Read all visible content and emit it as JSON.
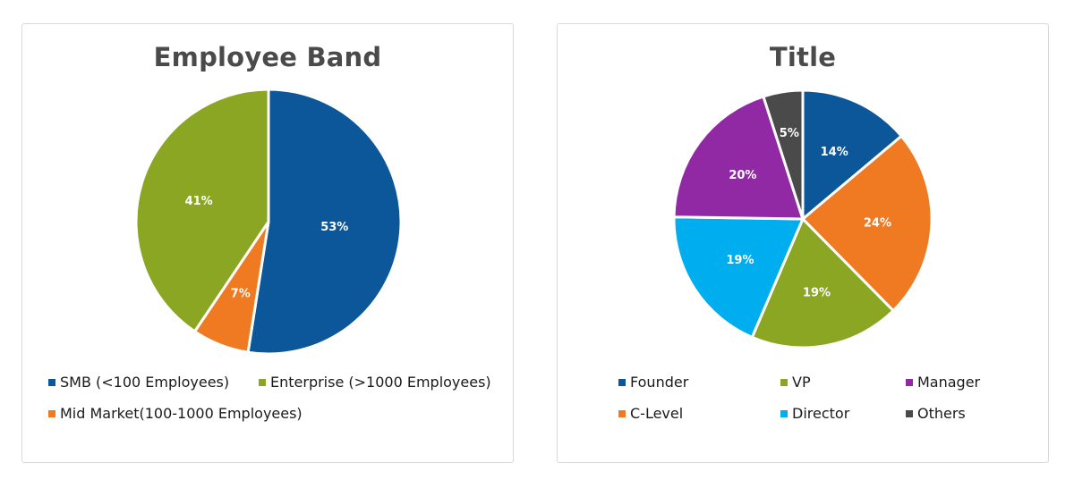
{
  "chart_data": [
    {
      "type": "pie",
      "title": "Employee Band",
      "slices": [
        {
          "label": "SMB (<100 Employees)",
          "value": 53,
          "display": "53%",
          "color": "#0b5799"
        },
        {
          "label": "Mid Market(100-1000 Employees)",
          "value": 7,
          "display": "7%",
          "color": "#ef7a22"
        },
        {
          "label": "Enterprise (>1000 Employees)",
          "value": 41,
          "display": "41%",
          "color": "#8aa622"
        }
      ],
      "legend": [
        {
          "label": "SMB (<100 Employees)",
          "color": "#0b5799"
        },
        {
          "label": "Enterprise (>1000 Employees)",
          "color": "#8aa622"
        },
        {
          "label": "Mid Market(100-1000 Employees)",
          "color": "#ef7a22"
        }
      ],
      "legend_position": "bottom"
    },
    {
      "type": "pie",
      "title": "Title",
      "slices": [
        {
          "label": "Founder",
          "value": 14,
          "display": "14%",
          "color": "#0b5799"
        },
        {
          "label": "C-Level",
          "value": 24,
          "display": "24%",
          "color": "#ef7a22"
        },
        {
          "label": "VP",
          "value": 19,
          "display": "19%",
          "color": "#8aa622"
        },
        {
          "label": "Director",
          "value": 19,
          "display": "19%",
          "color": "#00adee"
        },
        {
          "label": "Manager",
          "value": 20,
          "display": "20%",
          "color": "#9229a4"
        },
        {
          "label": "Others",
          "value": 5,
          "display": "5%",
          "color": "#4a4a4a"
        }
      ],
      "legend": [
        {
          "label": "Founder",
          "color": "#0b5799"
        },
        {
          "label": "VP",
          "color": "#8aa622"
        },
        {
          "label": "Manager",
          "color": "#9229a4"
        },
        {
          "label": "C-Level",
          "color": "#ef7a22"
        },
        {
          "label": "Director",
          "color": "#00adee"
        },
        {
          "label": "Others",
          "color": "#4a4a4a"
        }
      ],
      "legend_position": "bottom"
    }
  ]
}
